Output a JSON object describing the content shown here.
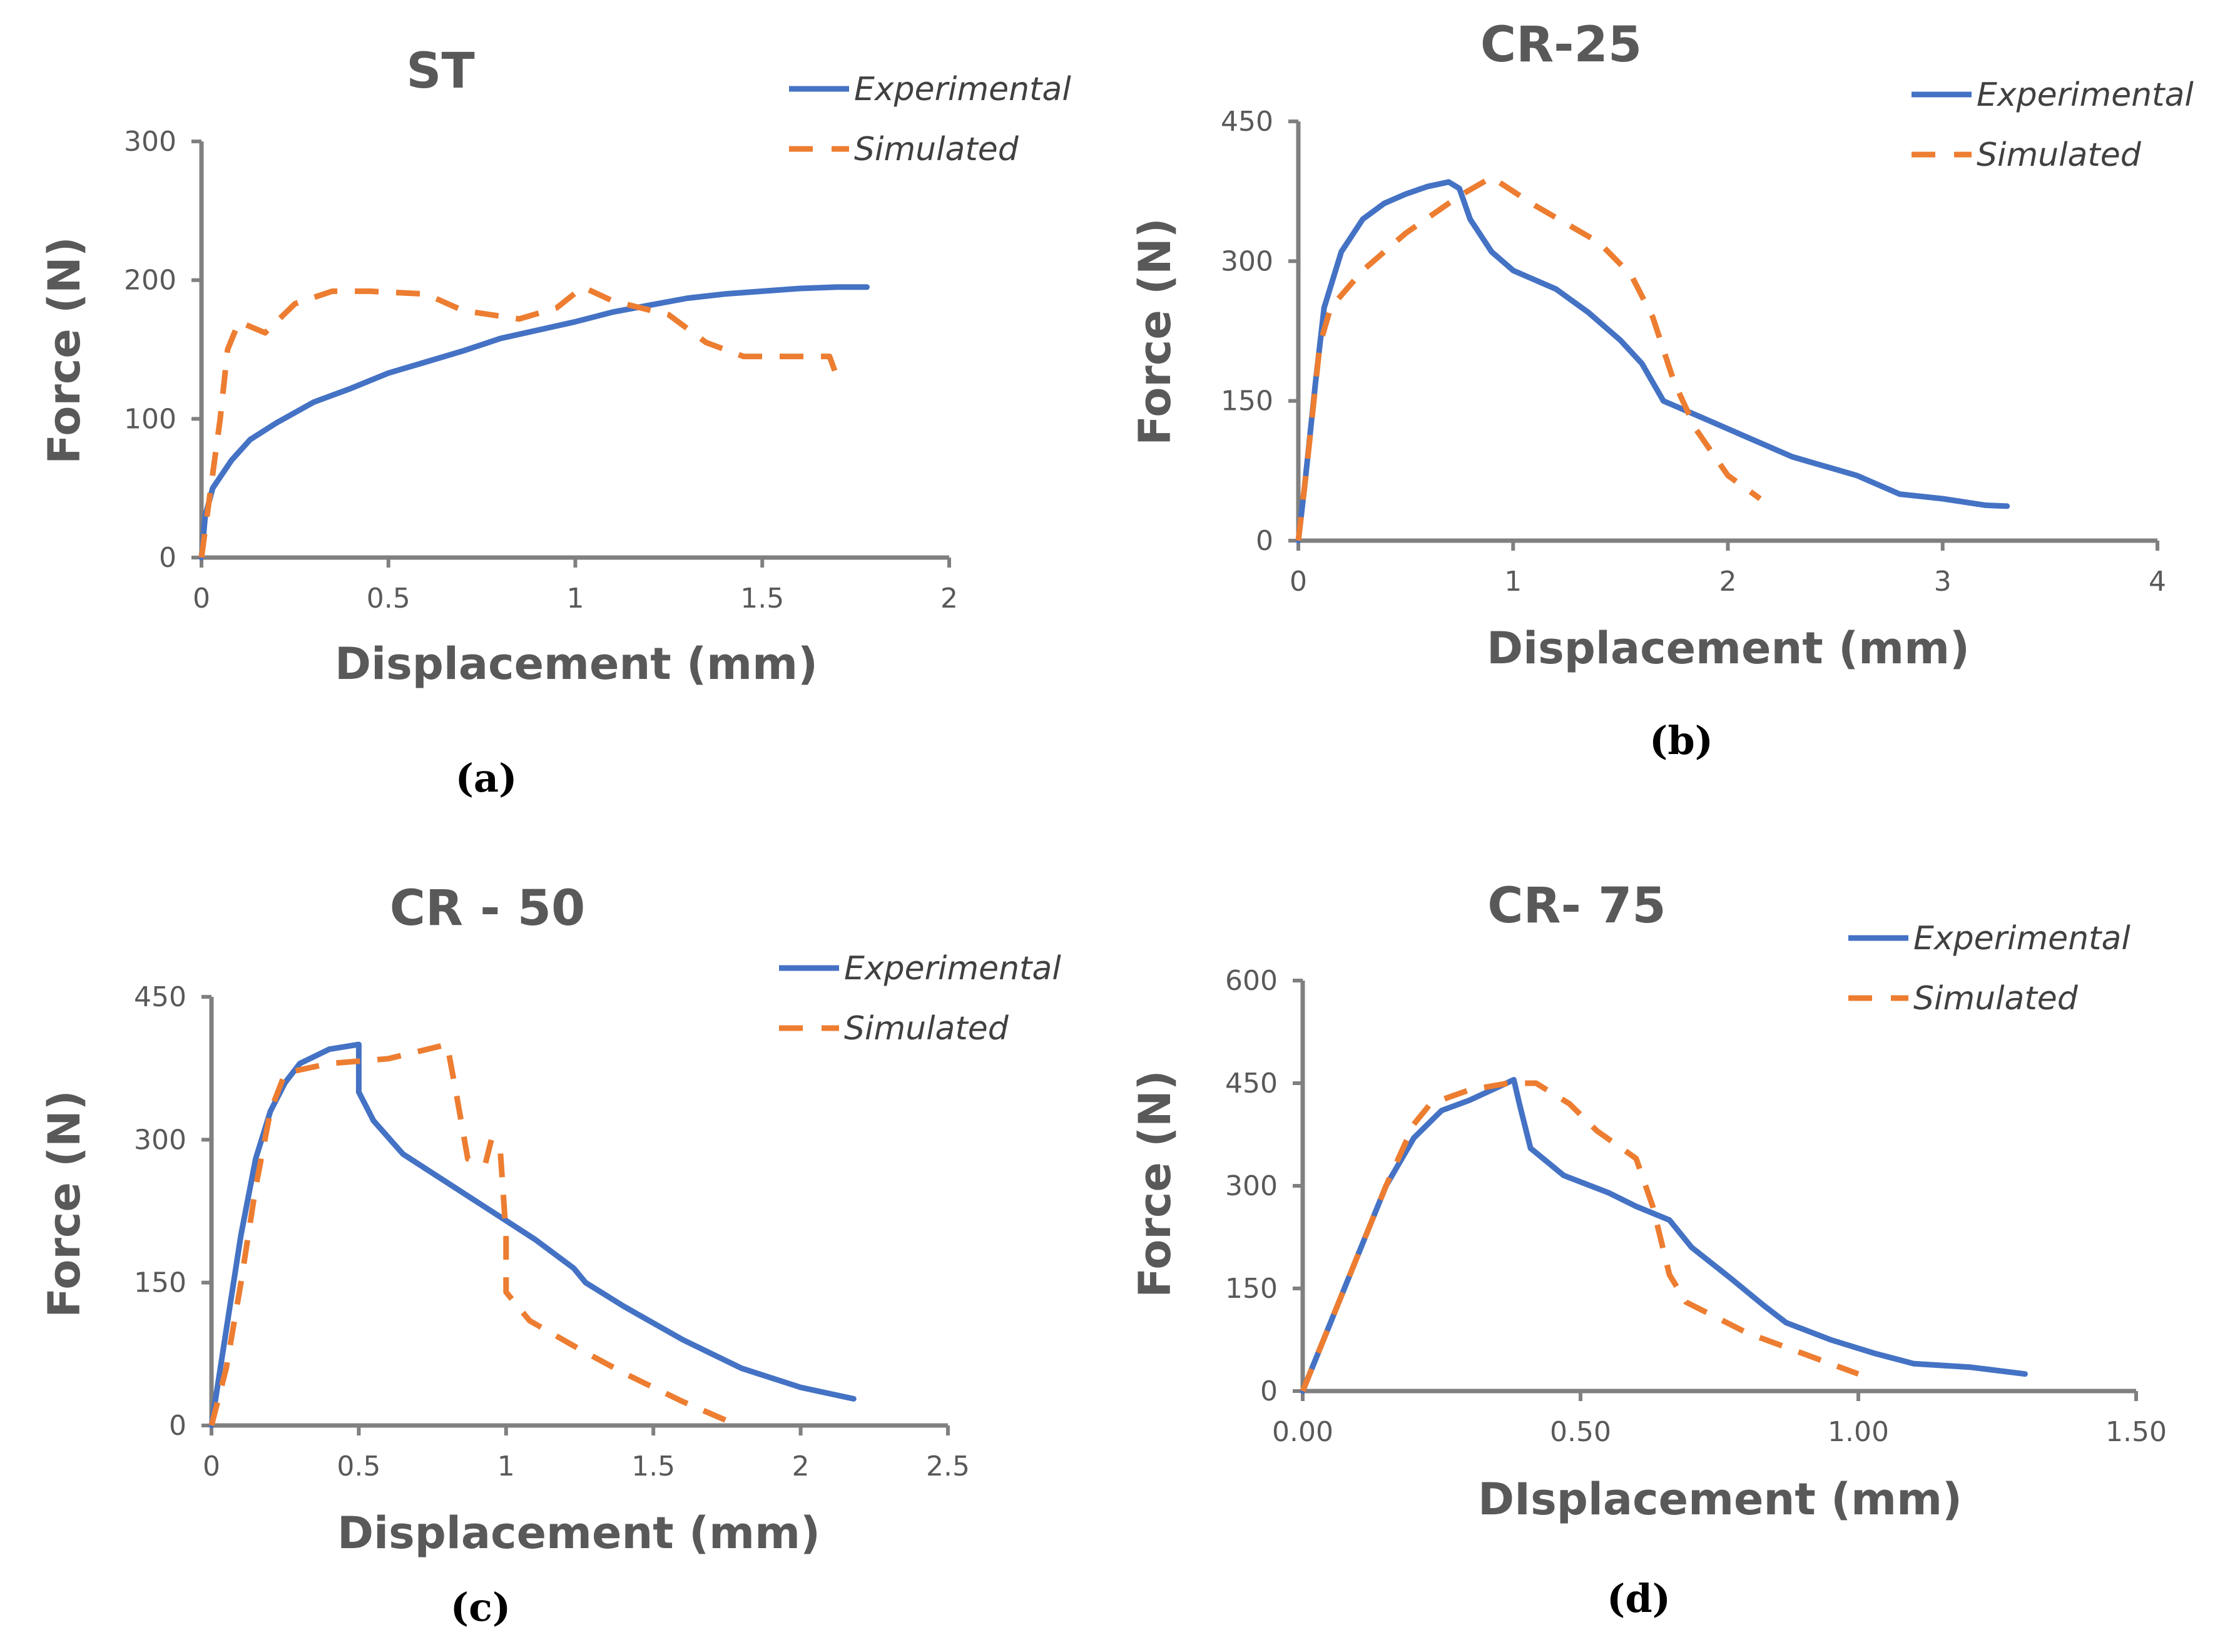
{
  "colors": {
    "experimental": "#4472C4",
    "simulated": "#ED7D31",
    "axis": "#808080"
  },
  "chart_data": [
    {
      "type": "line",
      "panel_label": "(a)",
      "title": "ST",
      "xlabel": "Displacement (mm)",
      "ylabel": "Force (N)",
      "xlim": [
        0,
        2
      ],
      "ylim": [
        0,
        300
      ],
      "xticks": [
        "0",
        "0.5",
        "1",
        "1.5",
        "2"
      ],
      "xtick_values": [
        0,
        0.5,
        1,
        1.5,
        2
      ],
      "yticks": [
        "0",
        "100",
        "200",
        "300"
      ],
      "ytick_values": [
        0,
        100,
        200,
        300
      ],
      "legend_position": "top-right",
      "series": [
        {
          "name": "Experimental",
          "style": "solid",
          "x": [
            0,
            0.01,
            0.03,
            0.08,
            0.13,
            0.2,
            0.3,
            0.4,
            0.5,
            0.6,
            0.7,
            0.8,
            0.9,
            1.0,
            1.1,
            1.2,
            1.3,
            1.4,
            1.5,
            1.6,
            1.7,
            1.78
          ],
          "y": [
            0,
            30,
            50,
            70,
            85,
            97,
            112,
            122,
            133,
            141,
            149,
            158,
            164,
            170,
            177,
            182,
            187,
            190,
            192,
            194,
            195,
            195
          ]
        },
        {
          "name": "Simulated",
          "style": "dashed",
          "x": [
            0,
            0.02,
            0.05,
            0.07,
            0.1,
            0.17,
            0.25,
            0.35,
            0.45,
            0.6,
            0.7,
            0.85,
            0.95,
            1.02,
            1.1,
            1.25,
            1.35,
            1.45,
            1.55,
            1.68,
            1.7
          ],
          "y": [
            0,
            40,
            100,
            150,
            170,
            162,
            183,
            192,
            192,
            190,
            178,
            172,
            180,
            195,
            185,
            175,
            155,
            145,
            145,
            145,
            130
          ]
        }
      ]
    },
    {
      "type": "line",
      "panel_label": "(b)",
      "title": "CR-25",
      "xlabel": "Displacement (mm)",
      "ylabel": "Force (N)",
      "xlim": [
        0,
        4
      ],
      "ylim": [
        0,
        450
      ],
      "xticks": [
        "0",
        "1",
        "2",
        "3",
        "4"
      ],
      "xtick_values": [
        0,
        1,
        2,
        3,
        4
      ],
      "yticks": [
        "0",
        "150",
        "300",
        "450"
      ],
      "ytick_values": [
        0,
        150,
        300,
        450
      ],
      "legend_position": "top-right",
      "series": [
        {
          "name": "Experimental",
          "style": "solid",
          "x": [
            0,
            0.03,
            0.08,
            0.12,
            0.2,
            0.3,
            0.4,
            0.5,
            0.6,
            0.7,
            0.75,
            0.8,
            0.9,
            1.0,
            1.2,
            1.35,
            1.5,
            1.6,
            1.7,
            1.9,
            2.1,
            2.3,
            2.6,
            2.8,
            3.0,
            3.2,
            3.3
          ],
          "y": [
            0,
            60,
            170,
            250,
            310,
            345,
            362,
            372,
            380,
            385,
            378,
            345,
            310,
            290,
            270,
            245,
            215,
            190,
            150,
            130,
            110,
            90,
            70,
            50,
            45,
            38,
            37
          ]
        },
        {
          "name": "Simulated",
          "style": "dashed",
          "x": [
            0,
            0.04,
            0.1,
            0.15,
            0.3,
            0.5,
            0.75,
            0.9,
            1.1,
            1.4,
            1.55,
            1.65,
            1.75,
            1.85,
            2.0,
            2.15
          ],
          "y": [
            0,
            80,
            210,
            250,
            290,
            330,
            370,
            390,
            360,
            320,
            285,
            240,
            170,
            120,
            70,
            45
          ]
        }
      ]
    },
    {
      "type": "line",
      "panel_label": "(c)",
      "title": "CR - 50",
      "xlabel": "Displacement (mm)",
      "ylabel": "Force (N)",
      "xlim": [
        0,
        2.5
      ],
      "ylim": [
        0,
        450
      ],
      "xticks": [
        "0",
        "0.5",
        "1",
        "1.5",
        "2",
        "2.5"
      ],
      "xtick_values": [
        0,
        0.5,
        1,
        1.5,
        2,
        2.5
      ],
      "yticks": [
        "0",
        "150",
        "300",
        "450"
      ],
      "ytick_values": [
        0,
        150,
        300,
        450
      ],
      "legend_position": "top-right",
      "series": [
        {
          "name": "Experimental",
          "style": "solid",
          "x": [
            0,
            0.05,
            0.1,
            0.15,
            0.2,
            0.25,
            0.3,
            0.4,
            0.5,
            0.5,
            0.55,
            0.65,
            0.8,
            1.0,
            1.1,
            1.23,
            1.27,
            1.4,
            1.6,
            1.8,
            2.0,
            2.18
          ],
          "y": [
            0,
            100,
            200,
            280,
            330,
            360,
            380,
            395,
            400,
            350,
            320,
            285,
            255,
            215,
            195,
            165,
            150,
            125,
            90,
            60,
            40,
            28
          ]
        },
        {
          "name": "Simulated",
          "style": "dashed",
          "x": [
            0,
            0.05,
            0.1,
            0.15,
            0.2,
            0.25,
            0.4,
            0.6,
            0.8,
            0.83,
            0.87,
            0.93,
            0.95,
            0.98,
            1.0,
            1.0,
            1.08,
            1.25,
            1.4,
            1.6,
            1.75
          ],
          "y": [
            0,
            60,
            150,
            250,
            330,
            370,
            380,
            385,
            400,
            350,
            280,
            275,
            300,
            290,
            200,
            140,
            110,
            80,
            55,
            25,
            5
          ]
        }
      ]
    },
    {
      "type": "line",
      "panel_label": "(d)",
      "title": "CR- 75",
      "xlabel": "DIsplacement (mm)",
      "ylabel": "Force (N)",
      "xlim": [
        0,
        1.5
      ],
      "ylim": [
        0,
        600
      ],
      "xticks": [
        "0.00",
        "0.50",
        "1.00",
        "1.50"
      ],
      "xtick_values": [
        0,
        0.5,
        1,
        1.5
      ],
      "yticks": [
        "0",
        "150",
        "300",
        "450",
        "600"
      ],
      "ytick_values": [
        0,
        150,
        300,
        450,
        600
      ],
      "legend_position": "top-right",
      "series": [
        {
          "name": "Experimental",
          "style": "solid",
          "x": [
            0,
            0.05,
            0.1,
            0.15,
            0.2,
            0.25,
            0.3,
            0.38,
            0.39,
            0.41,
            0.47,
            0.55,
            0.6,
            0.66,
            0.7,
            0.77,
            0.83,
            0.87,
            0.95,
            1.03,
            1.1,
            1.2,
            1.3
          ],
          "y": [
            0,
            100,
            200,
            300,
            370,
            410,
            425,
            455,
            420,
            355,
            315,
            290,
            270,
            250,
            210,
            165,
            125,
            100,
            75,
            55,
            40,
            35,
            25
          ]
        },
        {
          "name": "Simulated",
          "style": "dashed",
          "x": [
            0,
            0.05,
            0.1,
            0.15,
            0.2,
            0.23,
            0.3,
            0.37,
            0.42,
            0.48,
            0.53,
            0.6,
            0.63,
            0.66,
            0.69,
            0.8,
            0.9,
            1.0
          ],
          "y": [
            0,
            100,
            200,
            300,
            390,
            420,
            440,
            450,
            450,
            420,
            380,
            340,
            270,
            170,
            130,
            85,
            55,
            25
          ]
        }
      ]
    }
  ]
}
